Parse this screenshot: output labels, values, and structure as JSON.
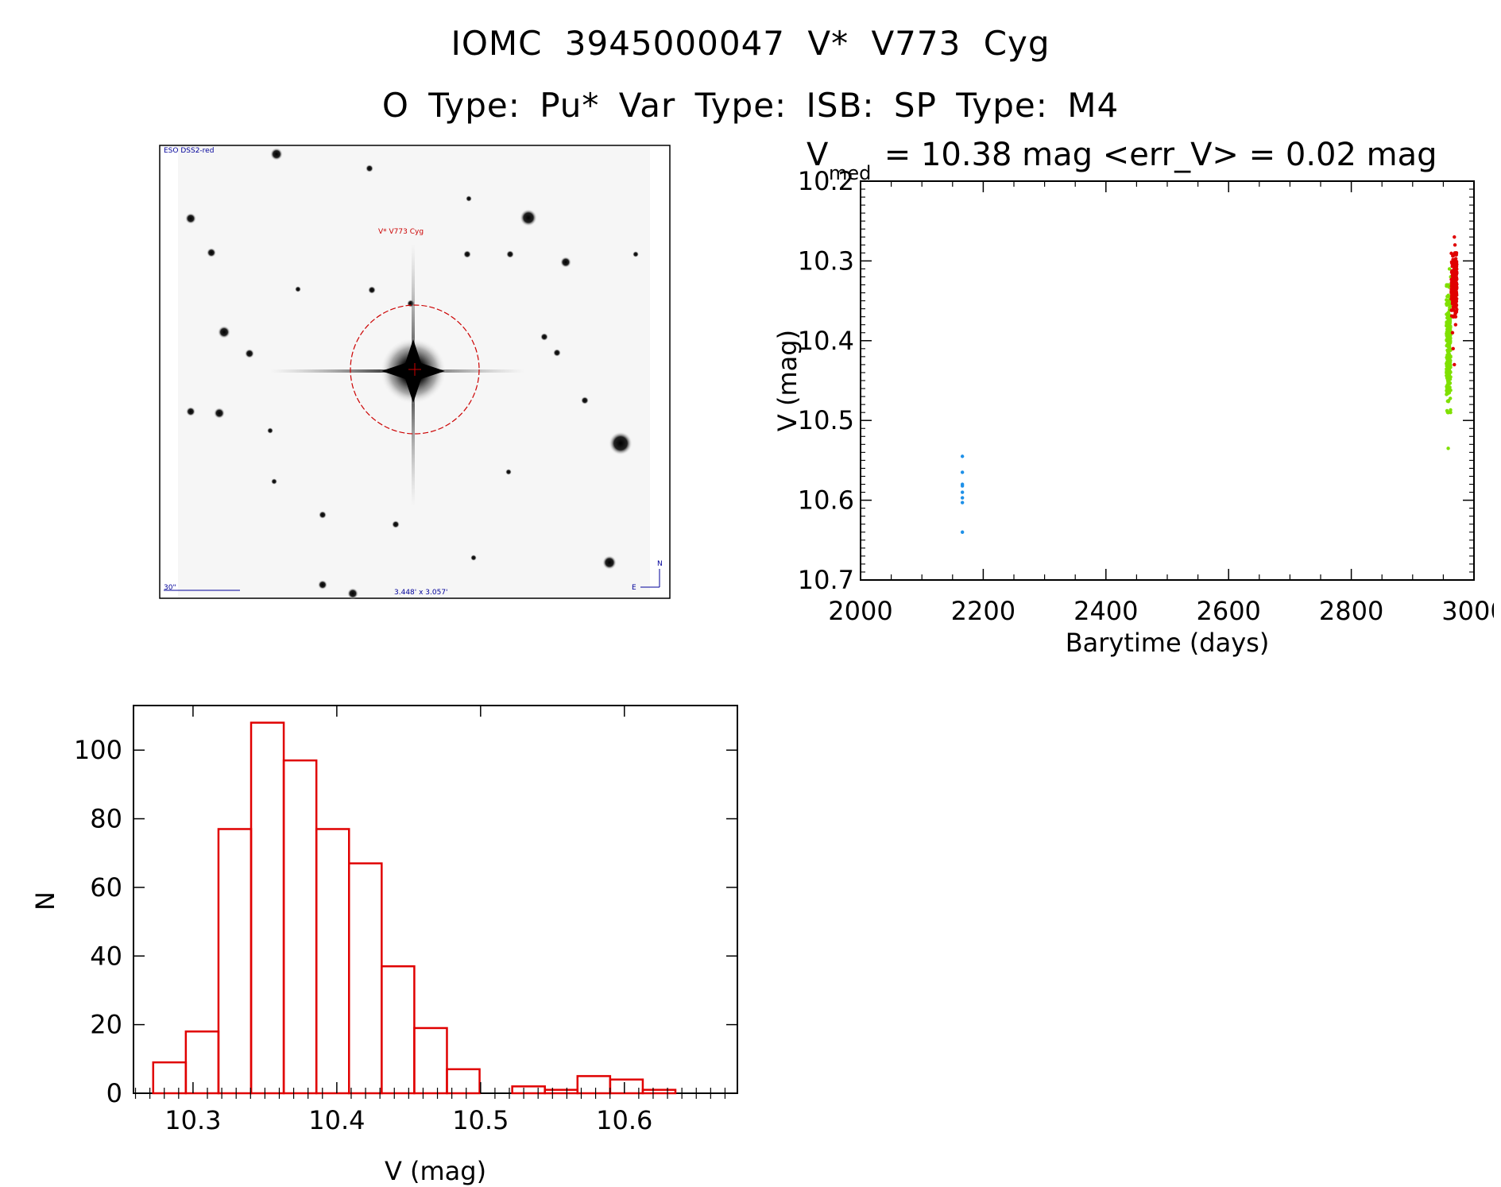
{
  "header": {
    "title_line1": "IOMC 3945000047   V* V773 Cyg",
    "title_line2": "O Type: Pu*  Var Type: ISB:  SP Type: M4"
  },
  "finder_image": {
    "survey_label": "ESO DSS2-red",
    "target_label": "V* V773 Cyg",
    "scale_label": "30\"",
    "fov_label": "3.448' x 3.057'",
    "north_label": "N",
    "east_label": "E"
  },
  "colors": {
    "axis": "#000000",
    "hist": "#e00000",
    "blue": "#1e90e8",
    "green": "#7fe000",
    "red": "#e00000",
    "finder_red": "#cc0000",
    "finder_blue": "#000099"
  },
  "chart_data": [
    {
      "type": "scatter",
      "title_main": "V",
      "title_sub": "med",
      "title_rest": " = 10.38 mag <err_V> = 0.02 mag",
      "xlabel": "Barytime (days)",
      "ylabel": "V (mag)",
      "xlim": [
        2000,
        3000
      ],
      "ylim": [
        10.7,
        10.2
      ],
      "y_inverted": true,
      "xticks": [
        2000,
        2200,
        2400,
        2600,
        2800,
        3000
      ],
      "xtick_labels": [
        "2000",
        "2200",
        "2400",
        "2600",
        "2800",
        "3000"
      ],
      "yticks": [
        10.2,
        10.3,
        10.4,
        10.5,
        10.6,
        10.7
      ],
      "ytick_labels": [
        "10.2",
        "10.3",
        "10.4",
        "10.5",
        "10.6",
        "10.7"
      ],
      "series": [
        {
          "color": "blue",
          "points": [
            [
              2166,
              10.545
            ],
            [
              2166,
              10.565
            ],
            [
              2166,
              10.58
            ],
            [
              2166,
              10.582
            ],
            [
              2166,
              10.59
            ],
            [
              2166,
              10.597
            ],
            [
              2166,
              10.603
            ],
            [
              2166,
              10.64
            ]
          ]
        },
        {
          "color": "green",
          "x_range": [
            2955,
            2962
          ],
          "y_range": [
            10.33,
            10.49
          ],
          "count": 260,
          "outliers": [
            [
              2958,
              10.535
            ],
            [
              2960,
              10.31
            ],
            [
              2962,
              10.32
            ]
          ]
        },
        {
          "color": "red",
          "x_range": [
            2963,
            2972
          ],
          "y_range": [
            10.29,
            10.37
          ],
          "count": 230,
          "outliers": [
            [
              2968,
              10.27
            ],
            [
              2969,
              10.28
            ],
            [
              2966,
              10.41
            ],
            [
              2968,
              10.43
            ],
            [
              2965,
              10.39
            ],
            [
              2970,
              10.38
            ]
          ]
        }
      ]
    },
    {
      "type": "bar",
      "xlabel": "V (mag)",
      "ylabel": "N",
      "xlim": [
        0.2586,
        0.6786
      ],
      "xlim_labeled": [
        10.2586,
        10.6786
      ],
      "ylim": [
        0,
        113
      ],
      "xticks": [
        10.3,
        10.4,
        10.5,
        10.6
      ],
      "xtick_labels": [
        "10.3",
        "10.4",
        "10.5",
        "10.6"
      ],
      "yticks": [
        0,
        20,
        40,
        60,
        80,
        100
      ],
      "ytick_labels": [
        "0",
        "20",
        "40",
        "60",
        "80",
        "100"
      ],
      "bin_width": 0.0227,
      "bin_starts": [
        10.2723,
        10.295,
        10.3177,
        10.3404,
        10.3631,
        10.3858,
        10.4085,
        10.4312,
        10.4539,
        10.4766,
        10.4993,
        10.522,
        10.5447,
        10.5674,
        10.5901,
        10.6128
      ],
      "values": [
        9,
        18,
        77,
        108,
        97,
        77,
        67,
        37,
        19,
        7,
        0,
        2,
        1,
        5,
        4,
        1
      ]
    }
  ]
}
